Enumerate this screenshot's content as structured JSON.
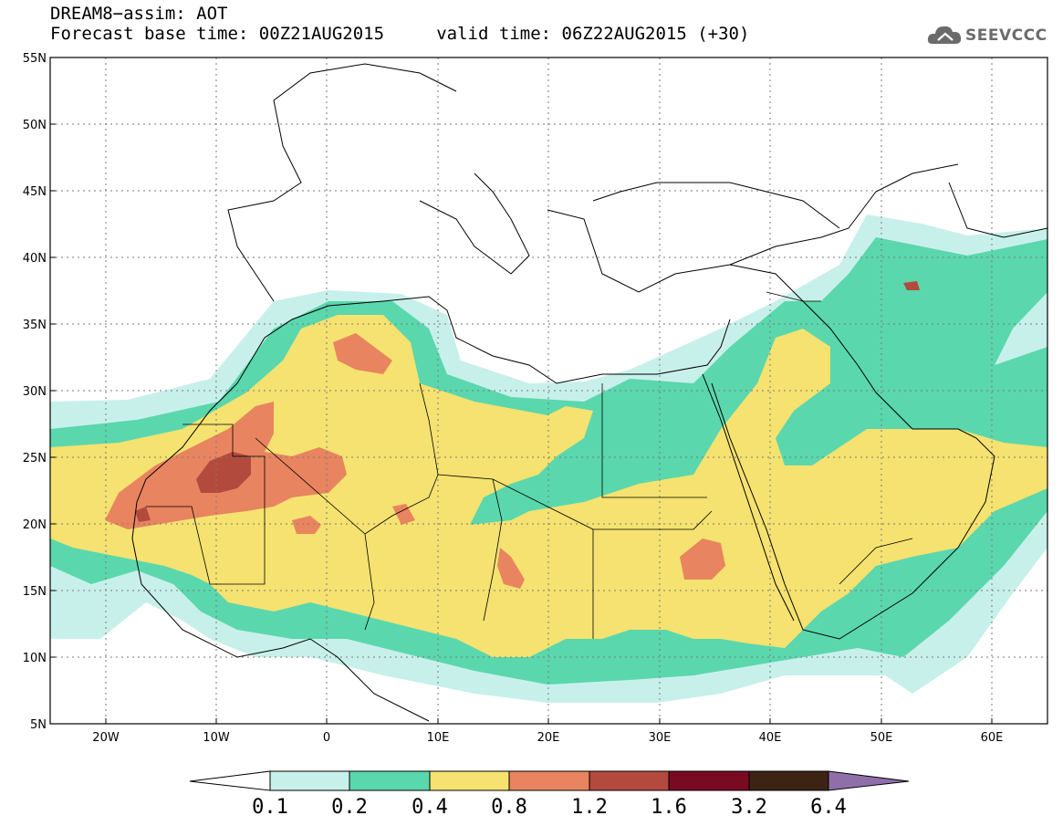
{
  "title": {
    "line1": "DREAM8−assim: AOT",
    "line2": "Forecast base time: 00Z21AUG2015     valid time: 06Z22AUG2015 (+30)"
  },
  "logo": {
    "text": "SEEVCCC",
    "icon": "cloud-icon"
  },
  "map": {
    "lat_range": [
      5,
      55
    ],
    "lon_range": [
      -25,
      65
    ],
    "grid": true,
    "lat_labels": [
      "55N",
      "50N",
      "45N",
      "40N",
      "35N",
      "30N",
      "25N",
      "20N",
      "15N",
      "10N",
      "5N"
    ],
    "lon_labels": [
      "20W",
      "10W",
      "0",
      "10E",
      "20E",
      "30E",
      "40E",
      "50E",
      "60E"
    ]
  },
  "colorbar": {
    "labels": [
      "0.1",
      "0.2",
      "0.4",
      "0.8",
      "1.2",
      "1.6",
      "3.2",
      "6.4"
    ],
    "colors": [
      "#ffffff",
      "#c8f0ea",
      "#5ad7ad",
      "#f5e270",
      "#e8845f",
      "#b34a3e",
      "#7a0a22",
      "#3c2314",
      "#8f6fa9"
    ]
  }
}
